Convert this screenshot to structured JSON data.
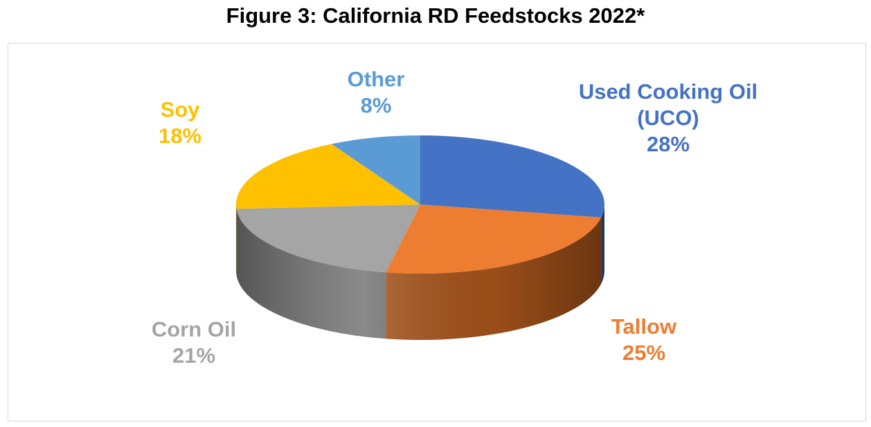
{
  "chart_data": {
    "type": "pie",
    "title": "Figure 3: California RD Feedstocks 2022*",
    "slices": [
      {
        "key": "uco",
        "label_lines": [
          "Used Cooking Oil",
          "(UCO)"
        ],
        "value": 28,
        "value_label": "28%",
        "color": "#4472C4",
        "side_color": "#2F528F"
      },
      {
        "key": "tallow",
        "label_lines": [
          "Tallow"
        ],
        "value": 25,
        "value_label": "25%",
        "color": "#ED7D31",
        "side_color": "#A3521A"
      },
      {
        "key": "corn",
        "label_lines": [
          "Corn Oil"
        ],
        "value": 21,
        "value_label": "21%",
        "color": "#A5A5A5",
        "side_color": "#707070"
      },
      {
        "key": "soy",
        "label_lines": [
          "Soy"
        ],
        "value": 18,
        "value_label": "18%",
        "color": "#FFC000",
        "side_color": "#B38600"
      },
      {
        "key": "other",
        "label_lines": [
          "Other"
        ],
        "value": 8,
        "value_label": "8%",
        "color": "#5B9BD5",
        "side_color": "#3A6E9E"
      }
    ],
    "legend": "none",
    "style": "3d-pie"
  }
}
